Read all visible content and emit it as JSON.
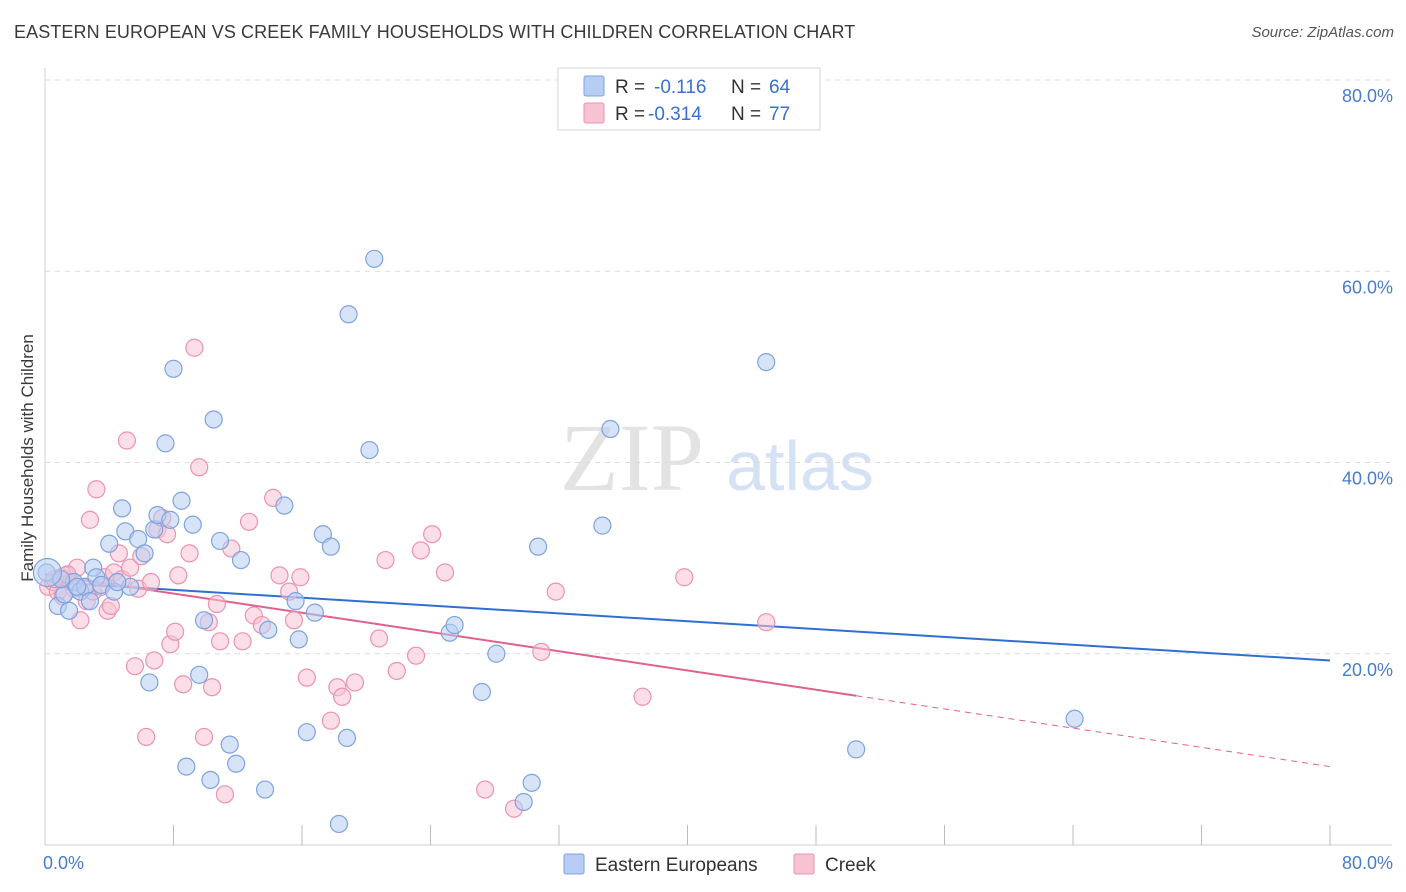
{
  "title": "EASTERN EUROPEAN VS CREEK FAMILY HOUSEHOLDS WITH CHILDREN CORRELATION CHART",
  "source": "Source: ZipAtlas.com",
  "watermark": {
    "part1": "ZIP",
    "part2": "atlas"
  },
  "colors": {
    "blue_fill": "#b7cdf3",
    "blue_stroke": "#7ea3e0",
    "blue_line": "#2f6fd1",
    "pink_fill": "#f7c3d3",
    "pink_stroke": "#eb93b0",
    "pink_line": "#e0608f",
    "grid": "#dcdcdc",
    "tick_text": "#4a7cc9"
  },
  "legend": {
    "rows": [
      {
        "r_label": "R =",
        "r_value": "-0.116",
        "n_label": "N =",
        "n_value": "64",
        "series": "blue"
      },
      {
        "r_label": "R =",
        "r_value": "-0.314",
        "n_label": "N =",
        "n_value": "77",
        "series": "pink"
      }
    ]
  },
  "chart_data": {
    "type": "scatter",
    "title": "EASTERN EUROPEAN VS CREEK FAMILY HOUSEHOLDS WITH CHILDREN CORRELATION CHART",
    "xlabel": "",
    "ylabel": "Family Households with Children",
    "xlim": [
      0,
      80
    ],
    "ylim": [
      0,
      80
    ],
    "x_tick_labels": [
      "0.0%",
      "80.0%"
    ],
    "y_tick_labels": [
      "20.0%",
      "40.0%",
      "60.0%",
      "80.0%"
    ],
    "y_ticks": [
      20,
      40,
      60,
      80
    ],
    "grid": true,
    "legend_placement": "bottom",
    "series": [
      {
        "name": "Eastern Europeans",
        "color": "#b7cdf3",
        "trend": {
          "x0": 0,
          "y0": 27.5,
          "x1": 80,
          "y1": 19.3,
          "solid_until": 80
        },
        "points": [
          [
            0.1,
            28.5
          ],
          [
            0.8,
            25.0
          ],
          [
            1.2,
            26.2
          ],
          [
            1.5,
            24.5
          ],
          [
            1.8,
            27.5
          ],
          [
            2.2,
            26.5
          ],
          [
            2.5,
            27.0
          ],
          [
            2.8,
            25.5
          ],
          [
            3.0,
            29.0
          ],
          [
            3.2,
            28.0
          ],
          [
            3.5,
            27.2
          ],
          [
            4.0,
            31.5
          ],
          [
            4.3,
            26.5
          ],
          [
            4.8,
            35.2
          ],
          [
            5.0,
            32.8
          ],
          [
            5.3,
            27.0
          ],
          [
            5.8,
            32.0
          ],
          [
            6.2,
            30.5
          ],
          [
            6.5,
            17.0
          ],
          [
            6.8,
            33.0
          ],
          [
            7.0,
            34.5
          ],
          [
            7.5,
            42.0
          ],
          [
            7.8,
            34.0
          ],
          [
            8.0,
            49.8
          ],
          [
            8.5,
            36.0
          ],
          [
            8.8,
            8.2
          ],
          [
            9.2,
            33.5
          ],
          [
            9.6,
            17.8
          ],
          [
            9.9,
            23.5
          ],
          [
            10.3,
            6.8
          ],
          [
            10.5,
            44.5
          ],
          [
            10.9,
            31.8
          ],
          [
            11.5,
            10.5
          ],
          [
            11.9,
            8.5
          ],
          [
            12.2,
            29.8
          ],
          [
            13.7,
            5.8
          ],
          [
            13.9,
            22.5
          ],
          [
            14.9,
            35.5
          ],
          [
            15.6,
            25.5
          ],
          [
            15.8,
            21.5
          ],
          [
            16.3,
            11.8
          ],
          [
            16.8,
            24.3
          ],
          [
            17.3,
            32.5
          ],
          [
            17.8,
            31.2
          ],
          [
            18.3,
            2.2
          ],
          [
            18.8,
            11.2
          ],
          [
            18.9,
            55.5
          ],
          [
            20.2,
            41.3
          ],
          [
            20.5,
            61.3
          ],
          [
            25.2,
            22.2
          ],
          [
            25.5,
            23.0
          ],
          [
            27.2,
            16.0
          ],
          [
            28.1,
            20.0
          ],
          [
            29.8,
            4.5
          ],
          [
            30.3,
            6.5
          ],
          [
            30.7,
            31.2
          ],
          [
            34.7,
            33.4
          ],
          [
            35.2,
            43.5
          ],
          [
            44.9,
            50.5
          ],
          [
            50.5,
            10.0
          ],
          [
            64.1,
            13.2
          ],
          [
            1.0,
            27.8
          ],
          [
            2.0,
            27.0
          ],
          [
            4.5,
            27.5
          ]
        ]
      },
      {
        "name": "Creek",
        "color": "#f7c3d3",
        "trend": {
          "x0": 0,
          "y0": 28.3,
          "x1": 80,
          "y1": 8.2,
          "solid_until": 50.5
        },
        "points": [
          [
            0.2,
            27.0
          ],
          [
            0.5,
            27.5
          ],
          [
            0.8,
            26.5
          ],
          [
            1.0,
            28.0
          ],
          [
            1.3,
            28.2
          ],
          [
            1.6,
            27.5
          ],
          [
            1.8,
            26.8
          ],
          [
            2.0,
            29.0
          ],
          [
            2.2,
            23.5
          ],
          [
            2.4,
            27.0
          ],
          [
            2.6,
            25.5
          ],
          [
            2.8,
            34.0
          ],
          [
            3.0,
            26.5
          ],
          [
            3.2,
            37.2
          ],
          [
            3.5,
            27.0
          ],
          [
            3.7,
            28.0
          ],
          [
            3.9,
            24.5
          ],
          [
            4.1,
            25.0
          ],
          [
            4.3,
            28.5
          ],
          [
            4.6,
            30.5
          ],
          [
            4.8,
            27.8
          ],
          [
            5.1,
            42.3
          ],
          [
            5.3,
            29.0
          ],
          [
            5.6,
            18.7
          ],
          [
            5.8,
            26.8
          ],
          [
            6.0,
            30.2
          ],
          [
            6.3,
            11.3
          ],
          [
            6.6,
            27.5
          ],
          [
            6.8,
            19.3
          ],
          [
            7.0,
            33.0
          ],
          [
            7.3,
            34.2
          ],
          [
            7.6,
            32.5
          ],
          [
            7.8,
            21.0
          ],
          [
            8.1,
            22.3
          ],
          [
            8.3,
            28.2
          ],
          [
            8.6,
            16.8
          ],
          [
            9.0,
            30.5
          ],
          [
            9.3,
            52.0
          ],
          [
            9.6,
            39.5
          ],
          [
            9.9,
            11.3
          ],
          [
            10.2,
            23.3
          ],
          [
            10.4,
            16.5
          ],
          [
            10.7,
            25.2
          ],
          [
            10.9,
            21.3
          ],
          [
            11.2,
            5.3
          ],
          [
            11.6,
            31.0
          ],
          [
            12.3,
            21.3
          ],
          [
            12.7,
            33.8
          ],
          [
            13.0,
            24.0
          ],
          [
            13.5,
            23.0
          ],
          [
            14.2,
            36.3
          ],
          [
            14.6,
            28.2
          ],
          [
            15.2,
            26.5
          ],
          [
            15.5,
            23.5
          ],
          [
            15.9,
            28.0
          ],
          [
            16.3,
            17.5
          ],
          [
            17.8,
            13.0
          ],
          [
            18.2,
            16.5
          ],
          [
            18.5,
            15.5
          ],
          [
            19.3,
            17.0
          ],
          [
            20.8,
            21.6
          ],
          [
            21.2,
            29.8
          ],
          [
            21.9,
            18.2
          ],
          [
            23.1,
            19.8
          ],
          [
            23.4,
            30.8
          ],
          [
            24.1,
            32.5
          ],
          [
            24.9,
            28.5
          ],
          [
            27.4,
            5.8
          ],
          [
            29.2,
            3.8
          ],
          [
            30.9,
            20.2
          ],
          [
            31.8,
            26.5
          ],
          [
            37.2,
            15.5
          ],
          [
            39.8,
            28.0
          ],
          [
            44.9,
            23.3
          ],
          [
            0.6,
            27.8
          ],
          [
            1.1,
            26.0
          ],
          [
            1.4,
            28.3
          ]
        ]
      }
    ]
  },
  "bottom_legend": {
    "items": [
      {
        "label": "Eastern Europeans",
        "series": "blue"
      },
      {
        "label": "Creek",
        "series": "pink"
      }
    ]
  }
}
